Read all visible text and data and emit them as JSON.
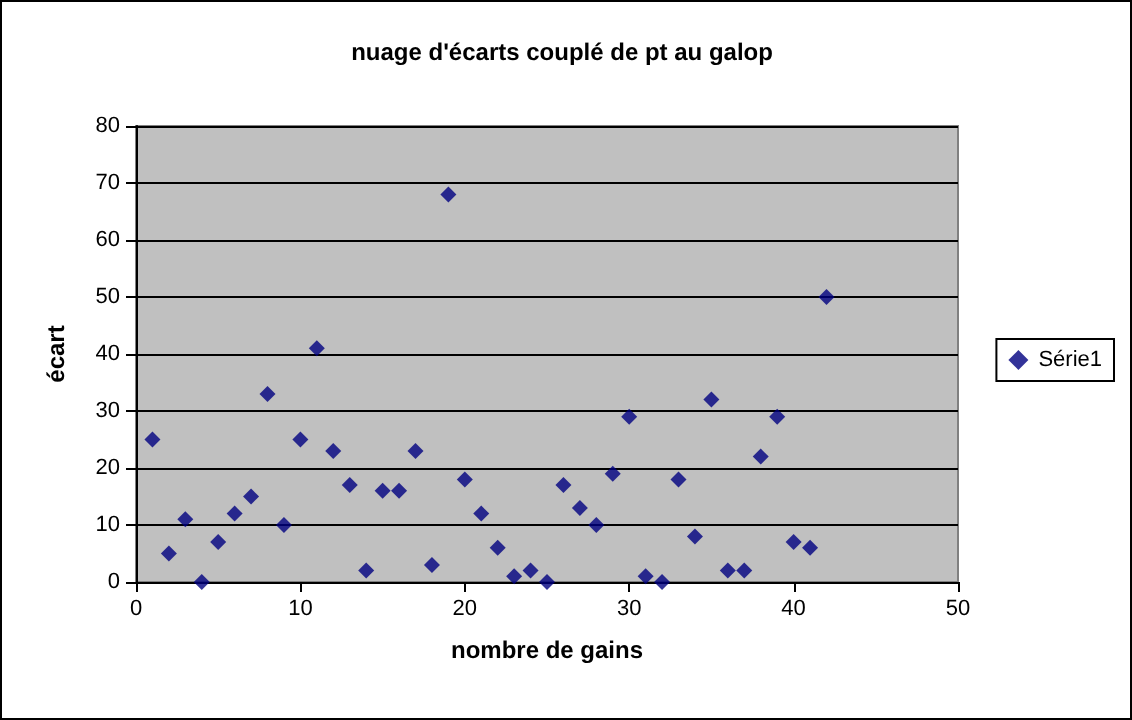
{
  "chart_data": {
    "type": "scatter",
    "title": "nuage d'écarts couplé de pt au galop",
    "xlabel": "nombre de gains",
    "ylabel": "écart",
    "x": [
      1,
      2,
      3,
      4,
      5,
      6,
      7,
      8,
      9,
      10,
      11,
      12,
      13,
      14,
      15,
      16,
      17,
      18,
      19,
      20,
      21,
      22,
      23,
      24,
      25,
      26,
      27,
      28,
      29,
      30,
      31,
      32,
      33,
      34,
      35,
      36,
      37,
      38,
      39,
      40,
      41,
      42
    ],
    "series": [
      {
        "name": "Série1",
        "color": "#000080",
        "values": [
          25,
          5,
          11,
          0,
          7,
          12,
          15,
          33,
          10,
          25,
          41,
          23,
          17,
          2,
          16,
          16,
          23,
          3,
          68,
          18,
          12,
          6,
          1,
          2,
          0,
          17,
          13,
          10,
          19,
          29,
          1,
          0,
          18,
          8,
          32,
          2,
          2,
          22,
          29,
          7,
          6,
          50
        ]
      }
    ],
    "xlim": [
      0,
      50
    ],
    "xticks": [
      0,
      10,
      20,
      30,
      40,
      50
    ],
    "ylim": [
      0,
      80
    ],
    "yticks": [
      0,
      10,
      20,
      30,
      40,
      50,
      60,
      70,
      80
    ],
    "grid": "y",
    "legend": "right",
    "marker": "diamond"
  }
}
